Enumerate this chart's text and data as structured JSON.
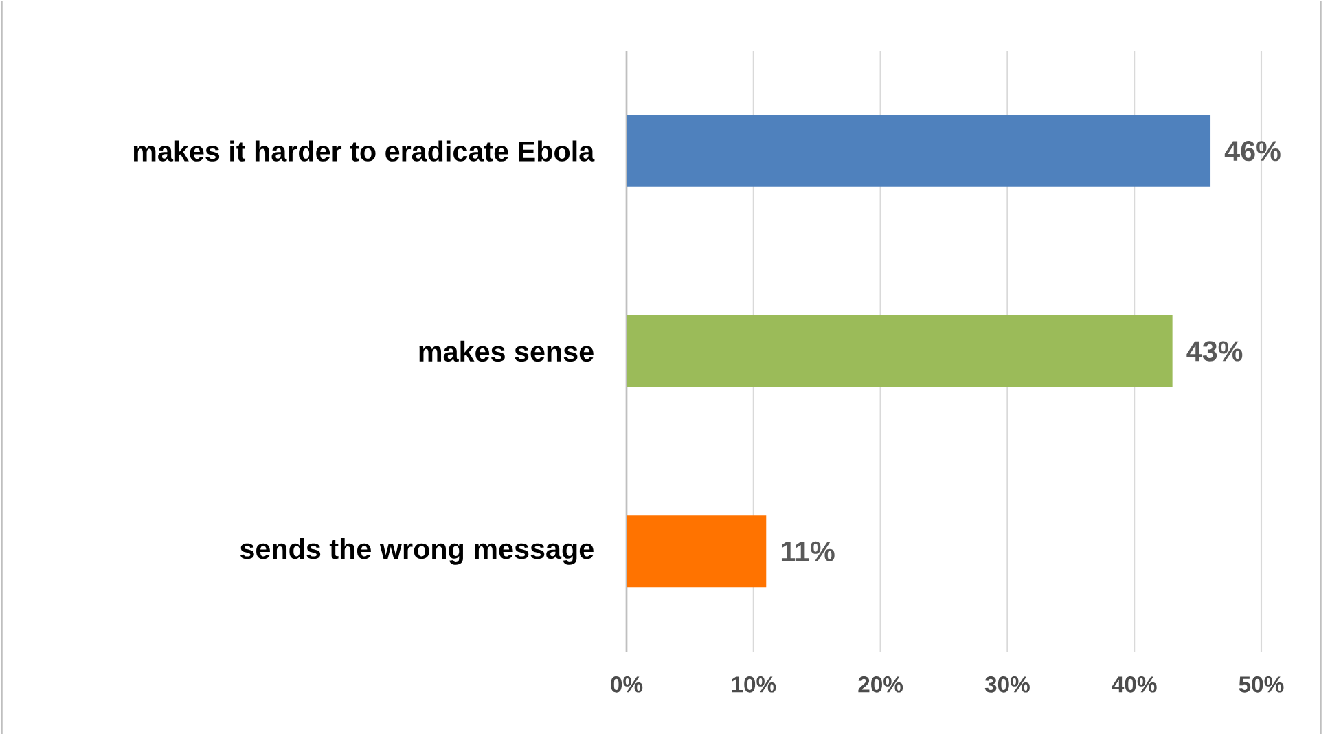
{
  "chart_data": {
    "type": "bar",
    "orientation": "horizontal",
    "categories": [
      "makes it harder to eradicate Ebola",
      "makes sense",
      "sends the wrong message"
    ],
    "values": [
      46,
      43,
      11
    ],
    "colors": [
      "#4f81bd",
      "#9bbb59",
      "#ff7300"
    ],
    "value_labels": [
      "46%",
      "43%",
      "11%"
    ],
    "xlim": [
      0,
      50
    ],
    "xticks": [
      {
        "value": 0,
        "label": "0%"
      },
      {
        "value": 10,
        "label": "10%"
      },
      {
        "value": 20,
        "label": "20%"
      },
      {
        "value": 30,
        "label": "30%"
      },
      {
        "value": 40,
        "label": "40%"
      },
      {
        "value": 50,
        "label": "50%"
      }
    ],
    "grid": "x"
  }
}
